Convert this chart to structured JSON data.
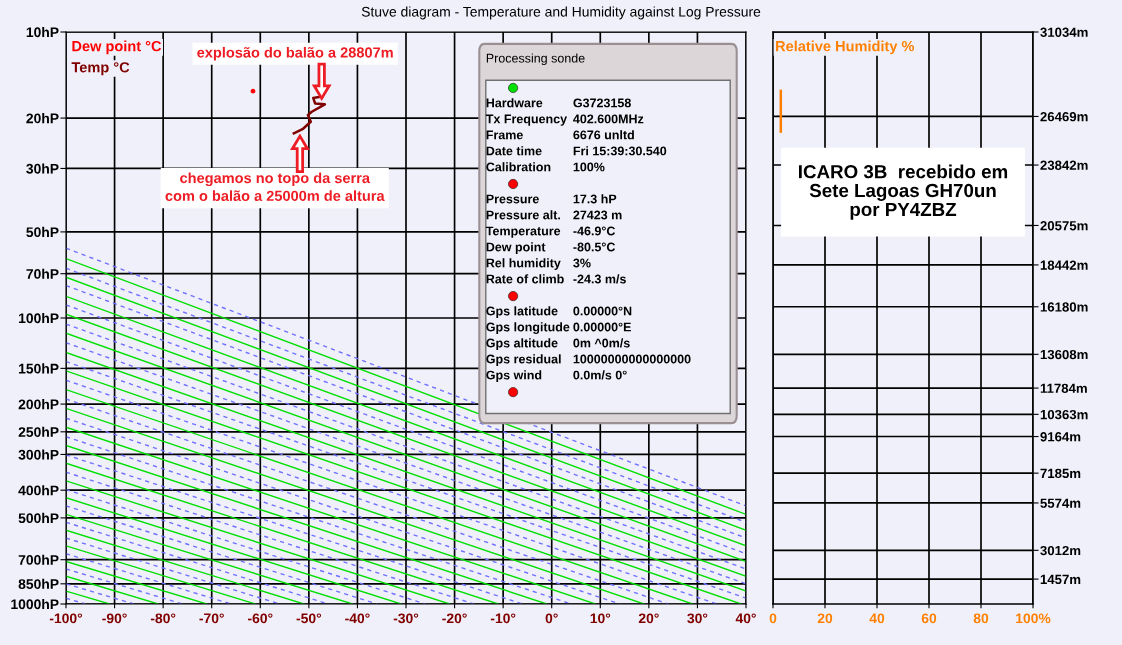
{
  "chart_data": [
    {
      "type": "line",
      "title": "Stuve diagram - Temperature and Humidity against Log Pressure",
      "xlim": [
        -100,
        40
      ],
      "xticks": [
        {
          "value": -100,
          "label": "-100°"
        },
        {
          "value": -90,
          "label": "-90°"
        },
        {
          "value": -80,
          "label": "-80°"
        },
        {
          "value": -70,
          "label": "-70°"
        },
        {
          "value": -60,
          "label": "-60°"
        },
        {
          "value": -50,
          "label": "-50°"
        },
        {
          "value": -40,
          "label": "-40°"
        },
        {
          "value": -30,
          "label": "-30°"
        },
        {
          "value": -20,
          "label": "-20°"
        },
        {
          "value": -10,
          "label": "-10°"
        },
        {
          "value": 0,
          "label": "0°"
        },
        {
          "value": 10,
          "label": "10°"
        },
        {
          "value": 20,
          "label": "20°"
        },
        {
          "value": 30,
          "label": "30°"
        },
        {
          "value": 40,
          "label": "40°"
        }
      ],
      "log": "y",
      "ylim": [
        1000,
        10
      ],
      "yticks": [
        {
          "value": 10,
          "label": "10hP"
        },
        {
          "value": 20,
          "label": "20hP"
        },
        {
          "value": 30,
          "label": "30hP"
        },
        {
          "value": 50,
          "label": "50hP"
        },
        {
          "value": 70,
          "label": "70hP"
        },
        {
          "value": 100,
          "label": "100hP"
        },
        {
          "value": 150,
          "label": "150hP"
        },
        {
          "value": 200,
          "label": "200hP"
        },
        {
          "value": 250,
          "label": "250hP"
        },
        {
          "value": 300,
          "label": "300hP"
        },
        {
          "value": 400,
          "label": "400hP"
        },
        {
          "value": 500,
          "label": "500hP"
        },
        {
          "value": 700,
          "label": "700hP"
        },
        {
          "value": 850,
          "label": "850hP"
        },
        {
          "value": 1000,
          "label": "1000hP"
        }
      ],
      "grid": true,
      "annotations": [
        "explosão do balão a 28807m",
        "chegamos no topo da serra\ncom o balão a 25000m de altura"
      ],
      "series": [
        {
          "name": "Dew point °C",
          "type": "scatter",
          "color": "#ff0000",
          "x": [
            -61.5
          ],
          "values": [
            16.1
          ]
        },
        {
          "name": "Temp °C",
          "type": "line",
          "color": "#800000",
          "x": [
            -53.1,
            -51.2,
            -49.6,
            -50.2,
            -49.4,
            -46.7,
            -48.7,
            -49.1,
            -47.3
          ],
          "values": [
            22.6,
            21.8,
            20.6,
            19.5,
            19.0,
            17.9,
            17.8,
            17.0,
            16.8
          ]
        },
        {
          "color": "#00e000",
          "x": [
            -100,
            -91
          ],
          "values": [
            901,
            1000
          ]
        },
        {
          "color": "#00e000",
          "x": [
            -100,
            -81
          ],
          "values": [
            800,
            1000
          ]
        },
        {
          "color": "#00e000",
          "x": [
            -100,
            -71
          ],
          "values": [
            710,
            1000
          ]
        },
        {
          "color": "#00e000",
          "x": [
            -100,
            -61
          ],
          "values": [
            626,
            1000
          ]
        },
        {
          "color": "#00e000",
          "x": [
            -100,
            -51
          ],
          "values": [
            552,
            1000
          ]
        },
        {
          "color": "#00e000",
          "x": [
            -100,
            -41
          ],
          "values": [
            486,
            1000
          ]
        },
        {
          "color": "#00e000",
          "x": [
            -100,
            -31
          ],
          "values": [
            425,
            1000
          ]
        },
        {
          "color": "#00e000",
          "x": [
            -100,
            -21
          ],
          "values": [
            371,
            1000
          ]
        },
        {
          "color": "#00e000",
          "x": [
            -100,
            -11
          ],
          "values": [
            322,
            1000
          ]
        },
        {
          "color": "#00e000",
          "x": [
            -100,
            -1
          ],
          "values": [
            279,
            1000
          ]
        },
        {
          "color": "#00e000",
          "x": [
            -100,
            9
          ],
          "values": [
            241,
            1000
          ]
        },
        {
          "color": "#00e000",
          "x": [
            -100,
            19
          ],
          "values": [
            207,
            1000
          ]
        },
        {
          "color": "#00e000",
          "x": [
            -100,
            29
          ],
          "values": [
            178,
            1000
          ]
        },
        {
          "color": "#00e000",
          "x": [
            -100,
            39
          ],
          "values": [
            153,
            1000
          ]
        },
        {
          "color": "#00e000",
          "x": [
            -100,
            40
          ],
          "values": [
            132,
            901
          ]
        },
        {
          "color": "#00e000",
          "x": [
            -100,
            40
          ],
          "values": [
            113,
            800
          ]
        },
        {
          "color": "#00e000",
          "x": [
            -100,
            40
          ],
          "values": [
            97,
            710
          ]
        },
        {
          "color": "#00e000",
          "x": [
            -100,
            40
          ],
          "values": [
            84,
            626
          ]
        },
        {
          "color": "#00e000",
          "x": [
            -100,
            40
          ],
          "values": [
            72,
            552
          ]
        },
        {
          "color": "#00e000",
          "x": [
            -100,
            40
          ],
          "values": [
            62,
            486
          ]
        },
        {
          "color": "#7070ff",
          "line_style": "dashed",
          "x": [
            -100,
            -96
          ],
          "values": [
            954,
            1000
          ]
        },
        {
          "color": "#7070ff",
          "line_style": "dashed",
          "x": [
            -100,
            -86
          ],
          "values": [
            850,
            1000
          ]
        },
        {
          "color": "#7070ff",
          "line_style": "dashed",
          "x": [
            -100,
            -76
          ],
          "values": [
            754,
            1000
          ]
        },
        {
          "color": "#7070ff",
          "line_style": "dashed",
          "x": [
            -100,
            -66
          ],
          "values": [
            667,
            1000
          ]
        },
        {
          "color": "#7070ff",
          "line_style": "dashed",
          "x": [
            -100,
            -56
          ],
          "values": [
            588,
            1000
          ]
        },
        {
          "color": "#7070ff",
          "line_style": "dashed",
          "x": [
            -100,
            -46
          ],
          "values": [
            518,
            1000
          ]
        },
        {
          "color": "#7070ff",
          "line_style": "dashed",
          "x": [
            -100,
            -36
          ],
          "values": [
            454,
            1000
          ]
        },
        {
          "color": "#7070ff",
          "line_style": "dashed",
          "x": [
            -100,
            -26
          ],
          "values": [
            398,
            1000
          ]
        },
        {
          "color": "#7070ff",
          "line_style": "dashed",
          "x": [
            -100,
            -16
          ],
          "values": [
            346,
            1000
          ]
        },
        {
          "color": "#7070ff",
          "line_style": "dashed",
          "x": [
            -100,
            -6
          ],
          "values": [
            301,
            1000
          ]
        },
        {
          "color": "#7070ff",
          "line_style": "dashed",
          "x": [
            -100,
            4
          ],
          "values": [
            260,
            1000
          ]
        },
        {
          "color": "#7070ff",
          "line_style": "dashed",
          "x": [
            -100,
            14
          ],
          "values": [
            224,
            1000
          ]
        },
        {
          "color": "#7070ff",
          "line_style": "dashed",
          "x": [
            -100,
            24
          ],
          "values": [
            192,
            1000
          ]
        },
        {
          "color": "#7070ff",
          "line_style": "dashed",
          "x": [
            -100,
            34
          ],
          "values": [
            165,
            1000
          ]
        },
        {
          "color": "#7070ff",
          "line_style": "dashed",
          "x": [
            -100,
            40
          ],
          "values": [
            142,
            954
          ]
        },
        {
          "color": "#7070ff",
          "line_style": "dashed",
          "x": [
            -100,
            40
          ],
          "values": [
            122,
            850
          ]
        },
        {
          "color": "#7070ff",
          "line_style": "dashed",
          "x": [
            -100,
            40
          ],
          "values": [
            105,
            754
          ]
        },
        {
          "color": "#7070ff",
          "line_style": "dashed",
          "x": [
            -100,
            40
          ],
          "values": [
            90,
            667
          ]
        },
        {
          "color": "#7070ff",
          "line_style": "dashed",
          "x": [
            -100,
            40
          ],
          "values": [
            77,
            588
          ]
        },
        {
          "color": "#7070ff",
          "line_style": "dashed",
          "x": [
            -100,
            40
          ],
          "values": [
            67,
            518
          ]
        },
        {
          "color": "#7070ff",
          "line_style": "dashed",
          "x": [
            -100,
            40
          ],
          "values": [
            57,
            454
          ]
        }
      ]
    },
    {
      "type": "line",
      "xlim": [
        0,
        100
      ],
      "xticks": [
        0,
        20,
        40,
        60,
        80,
        {
          "value": 100,
          "label": "100%"
        }
      ],
      "y2lim": [
        111,
        31034
      ],
      "y2ticks": [
        {
          "value": 31034,
          "label": "31034m"
        },
        {
          "value": 26469,
          "label": "26469m"
        },
        {
          "value": 23842,
          "label": "23842m"
        },
        {
          "value": 20575,
          "label": "20575m"
        },
        {
          "value": 18442,
          "label": "18442m"
        },
        {
          "value": 16180,
          "label": "16180m"
        },
        {
          "value": 13608,
          "label": "13608m"
        },
        {
          "value": 11784,
          "label": "11784m"
        },
        {
          "value": 10363,
          "label": "10363m"
        },
        {
          "value": 9164,
          "label": "9164m"
        },
        {
          "value": 7185,
          "label": "7185m"
        },
        {
          "value": 5574,
          "label": "5574m"
        },
        {
          "value": 3012,
          "label": "3012m"
        },
        {
          "value": 1457,
          "label": "1457m"
        }
      ],
      "grid": true,
      "annotations": [
        "ICARO 3B  recebido em\nSete Lagoas GH70un\npor PY4ZBZ"
      ],
      "series": [
        {
          "name": "Relative Humidity %",
          "color": "#ff8000",
          "axis": "y2",
          "x": [
            3,
            3
          ],
          "values": [
            27850,
            25650
          ]
        }
      ]
    },
    {
      "type": "other",
      "title": "Processing sonde",
      "categories": [
        null,
        "Hardware",
        "Tx Frequency",
        "Frame",
        "Date time",
        "Calibration",
        null,
        "Pressure",
        "Pressure alt.",
        "Temperature",
        "Dew point",
        "Rel humidity",
        "Rate of climb",
        null,
        "Gps latitude",
        "Gps longitude",
        "Gps altitude",
        "Gps residual",
        "Gps wind",
        null
      ],
      "value_labels": [
        null,
        "G3723158",
        "402.600MHz",
        "6676 unltd",
        "Fri 15:39:30.540",
        "100%",
        null,
        "17.3 hP",
        "27423 m",
        "-46.9°C",
        "-80.5°C",
        "3%",
        "-24.3 m/s",
        null,
        "0.00000°N",
        "0.00000°E",
        "0m ^0m/s",
        "10000000000000000",
        "0.0m/s 0°",
        null
      ],
      "colors": [
        "#00e000",
        null,
        null,
        null,
        null,
        null,
        "#ff0000",
        null,
        null,
        null,
        null,
        null,
        null,
        "#ff0000",
        null,
        null,
        null,
        null,
        null,
        "#ff0000"
      ]
    }
  ]
}
